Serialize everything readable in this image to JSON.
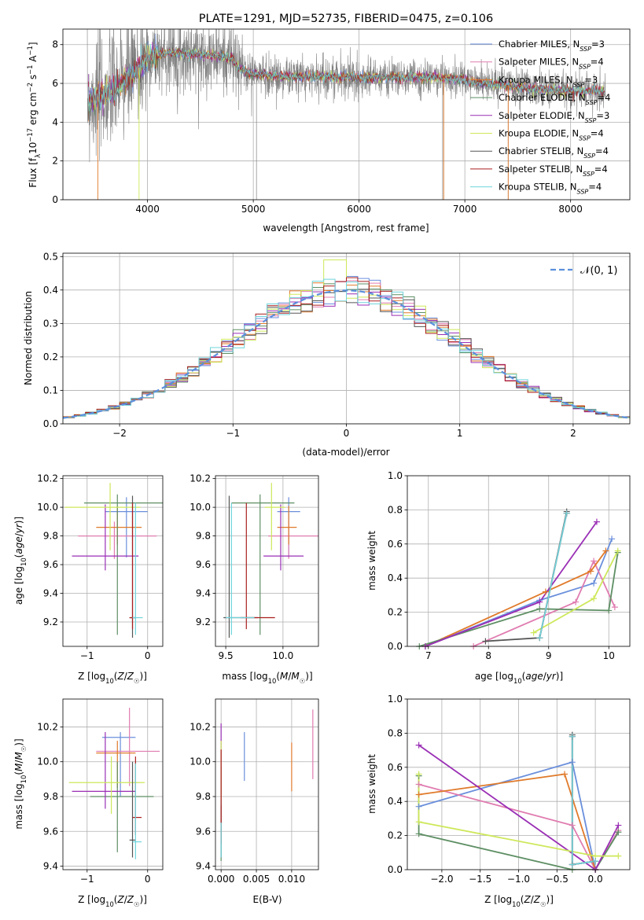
{
  "colors": {
    "chabrier_miles": "#6a8fdc",
    "salpeter_miles": "#e07cb0",
    "kroupa_miles": "#e07a2a",
    "chabrier_elodie": "#5e8f64",
    "salpeter_elodie": "#9a2fb5",
    "kroupa_elodie": "#cde85a",
    "chabrier_stelib": "#555555",
    "salpeter_stelib": "#aa1f1f",
    "kroupa_stelib": "#6fd4dc",
    "normal_curve": "#5b8fdc",
    "spectrum": "#808080"
  },
  "chart_data": [
    {
      "type": "line",
      "title": "PLATE=1291, MJD=52735, FIBERID=0475, z=0.106",
      "xlabel": "wavelength [Angstrom, rest frame]",
      "ylabel": "Flux [f_λ 10^-17 erg cm^-2 s^-1 A^-1]",
      "xlim": [
        3200,
        8560
      ],
      "ylim": [
        0,
        8.8
      ],
      "xticks": [
        4000,
        5000,
        6000,
        7000,
        8000
      ],
      "yticks": [
        0,
        2,
        4,
        6,
        8
      ],
      "legend_position": "top-right",
      "legend": [
        {
          "base": "Chabrier MILES, N",
          "sub": "SSP",
          "tail": "=3",
          "color_key": "chabrier_miles"
        },
        {
          "base": "Salpeter MILES, N",
          "sub": "SSP",
          "tail": "=4",
          "color_key": "salpeter_miles"
        },
        {
          "base": "Kroupa MILES, N",
          "sub": "SSP",
          "tail": "=3",
          "color_key": "kroupa_miles"
        },
        {
          "base": "Chabrier ELODIE, N",
          "sub": "SSP",
          "tail": "=4",
          "color_key": "chabrier_elodie"
        },
        {
          "base": "Salpeter ELODIE, N",
          "sub": "SSP",
          "tail": "=3",
          "color_key": "salpeter_elodie"
        },
        {
          "base": "Kroupa ELODIE, N",
          "sub": "SSP",
          "tail": "=4",
          "color_key": "kroupa_elodie"
        },
        {
          "base": "Chabrier STELIB, N",
          "sub": "SSP",
          "tail": "=4",
          "color_key": "chabrier_stelib"
        },
        {
          "base": "Salpeter STELIB, N",
          "sub": "SSP",
          "tail": "=4",
          "color_key": "salpeter_stelib"
        },
        {
          "base": "Kroupa STELIB, N",
          "sub": "SSP",
          "tail": "=4",
          "color_key": "kroupa_stelib"
        }
      ],
      "model_continuum": {
        "x": [
          3450,
          3600,
          3800,
          3900,
          4000,
          4200,
          4400,
          4600,
          4800,
          4850,
          5000,
          5300,
          5600,
          6000,
          6400,
          6800,
          7200,
          7600,
          8000,
          8300
        ],
        "y": [
          5.2,
          5.4,
          6.2,
          6.7,
          7.3,
          7.6,
          7.5,
          7.45,
          7.3,
          6.8,
          6.5,
          6.35,
          6.35,
          6.3,
          6.3,
          6.3,
          6.0,
          5.75,
          5.6,
          5.6
        ]
      }
    },
    {
      "type": "histogram",
      "xlabel": "(data-model)/error",
      "ylabel": "Normed distribution",
      "xlim": [
        -2.5,
        2.5
      ],
      "ylim": [
        0,
        0.51
      ],
      "xticks": [
        -2,
        -1,
        0,
        1,
        2
      ],
      "yticks": [
        0.0,
        0.1,
        0.2,
        0.3,
        0.4,
        0.5
      ],
      "bin_width": 0.1,
      "legend_label": "𝒩(0, 1)",
      "legend_position": "top-right",
      "reference_curve": "standard normal density"
    },
    {
      "type": "error_bars",
      "xlabel": "Z [log10(Z/Z☉)]",
      "ylabel": "age [log10(age/yr)]",
      "xlim": [
        -1.4,
        0.25
      ],
      "ylim": [
        9.03,
        10.22
      ],
      "xticks": [
        -1,
        0
      ],
      "yticks": [
        9.2,
        9.4,
        9.6,
        9.8,
        10.0,
        10.2
      ],
      "points": [
        {
          "color_key": "chabrier_miles",
          "x": -0.35,
          "xerr": [
            0.35,
            0.35
          ],
          "y": 9.97,
          "yerr": [
            0.32,
            0.1
          ]
        },
        {
          "color_key": "salpeter_miles",
          "x": -0.55,
          "xerr": [
            0.6,
            0.7
          ],
          "y": 9.8,
          "yerr": [
            0.16,
            0.1
          ]
        },
        {
          "color_key": "kroupa_miles",
          "x": -0.5,
          "xerr": [
            0.35,
            0.4
          ],
          "y": 9.86,
          "yerr": [
            0.12,
            0.15
          ]
        },
        {
          "color_key": "chabrier_elodie",
          "x": -0.5,
          "xerr": [
            0.55,
            0.75
          ],
          "y": 10.03,
          "yerr": [
            0.92,
            0.06
          ]
        },
        {
          "color_key": "salpeter_elodie",
          "x": -0.7,
          "xerr": [
            0.55,
            0.55
          ],
          "y": 9.66,
          "yerr": [
            0.1,
            0.36
          ]
        },
        {
          "color_key": "kroupa_elodie",
          "x": -0.62,
          "xerr": [
            0.75,
            0.5
          ],
          "y": 10.0,
          "yerr": [
            0.3,
            0.17
          ]
        },
        {
          "color_key": "chabrier_stelib",
          "x": -0.25,
          "xerr": [
            0.05,
            0.05
          ],
          "y": 9.23,
          "yerr": [
            0.14,
            0.85
          ]
        },
        {
          "color_key": "salpeter_stelib",
          "x": -0.25,
          "xerr": [
            0.05,
            0.05
          ],
          "y": 9.23,
          "yerr": [
            0.08,
            0.8
          ]
        },
        {
          "color_key": "kroupa_stelib",
          "x": -0.2,
          "xerr": [
            0.05,
            0.12
          ],
          "y": 9.23,
          "yerr": [
            0.12,
            0.8
          ]
        }
      ]
    },
    {
      "type": "error_bars",
      "xlabel": "mass [log10(M/M☉)]",
      "ylabel": "",
      "xlim": [
        9.41,
        10.31
      ],
      "ylim": [
        9.03,
        10.22
      ],
      "xticks": [
        9.5,
        10.0
      ],
      "yticks": [
        9.2,
        9.4,
        9.6,
        9.8,
        10.0,
        10.2
      ],
      "points": [
        {
          "color_key": "chabrier_miles",
          "x": 10.05,
          "xerr": [
            0.1,
            0.1
          ],
          "y": 9.97,
          "yerr": [
            0.32,
            0.1
          ]
        },
        {
          "color_key": "salpeter_miles",
          "x": 10.05,
          "xerr": [
            0.18,
            0.26
          ],
          "y": 9.8,
          "yerr": [
            0.16,
            0.1
          ]
        },
        {
          "color_key": "kroupa_miles",
          "x": 10.05,
          "xerr": [
            0.1,
            0.07
          ],
          "y": 9.86,
          "yerr": [
            0.12,
            0.15
          ]
        },
        {
          "color_key": "chabrier_elodie",
          "x": 9.8,
          "xerr": [
            0.25,
            0.3
          ],
          "y": 10.03,
          "yerr": [
            0.92,
            0.06
          ]
        },
        {
          "color_key": "salpeter_elodie",
          "x": 9.98,
          "xerr": [
            0.15,
            0.2
          ],
          "y": 9.66,
          "yerr": [
            0.1,
            0.36
          ]
        },
        {
          "color_key": "kroupa_elodie",
          "x": 9.9,
          "xerr": [
            0.06,
            0.12
          ],
          "y": 10.0,
          "yerr": [
            0.3,
            0.17
          ]
        },
        {
          "color_key": "chabrier_stelib",
          "x": 9.53,
          "xerr": [
            0.05,
            0.25
          ],
          "y": 9.23,
          "yerr": [
            0.14,
            0.85
          ]
        },
        {
          "color_key": "salpeter_stelib",
          "x": 9.68,
          "xerr": [
            0.05,
            0.25
          ],
          "y": 9.23,
          "yerr": [
            0.08,
            0.8
          ]
        },
        {
          "color_key": "kroupa_stelib",
          "x": 9.55,
          "xerr": [
            0.05,
            0.2
          ],
          "y": 9.23,
          "yerr": [
            0.12,
            0.8
          ]
        }
      ]
    },
    {
      "type": "line",
      "xlabel": "age [log10(age/yr)]",
      "ylabel": "mass weight",
      "xlim": [
        6.65,
        10.35
      ],
      "ylim": [
        0,
        1.0
      ],
      "xticks": [
        7,
        8,
        9,
        10
      ],
      "yticks": [
        0.0,
        0.2,
        0.4,
        0.6,
        0.8,
        1.0
      ],
      "series": [
        {
          "color_key": "chabrier_miles",
          "x": [
            6.95,
            8.85,
            9.75,
            10.05
          ],
          "y": [
            0.0,
            0.27,
            0.37,
            0.63
          ]
        },
        {
          "color_key": "salpeter_miles",
          "x": [
            7.75,
            9.45,
            9.75,
            10.1
          ],
          "y": [
            0.0,
            0.26,
            0.5,
            0.23
          ]
        },
        {
          "color_key": "kroupa_miles",
          "x": [
            6.95,
            8.95,
            9.7,
            9.95
          ],
          "y": [
            0.0,
            0.32,
            0.44,
            0.56
          ]
        },
        {
          "color_key": "chabrier_elodie",
          "x": [
            6.85,
            8.85,
            10.0,
            10.15
          ],
          "y": [
            0.0,
            0.22,
            0.21,
            0.55
          ]
        },
        {
          "color_key": "salpeter_elodie",
          "x": [
            6.95,
            8.85,
            9.8
          ],
          "y": [
            0.0,
            0.26,
            0.73
          ]
        },
        {
          "color_key": "kroupa_elodie",
          "x": [
            8.75,
            9.75,
            10.15
          ],
          "y": [
            0.08,
            0.28,
            0.56
          ]
        },
        {
          "color_key": "chabrier_stelib",
          "x": [
            7.95,
            8.85,
            9.3
          ],
          "y": [
            0.03,
            0.05,
            0.79
          ]
        },
        {
          "color_key": "salpeter_stelib",
          "x": [
            8.85,
            9.3
          ],
          "y": [
            0.05,
            0.78
          ]
        },
        {
          "color_key": "kroupa_stelib",
          "x": [
            8.85,
            9.3
          ],
          "y": [
            0.05,
            0.78
          ]
        }
      ]
    },
    {
      "type": "error_bars",
      "xlabel": "Z [log10(Z/Z☉)]",
      "ylabel": "mass [log10(M/M☉)]",
      "xlim": [
        -1.4,
        0.25
      ],
      "ylim": [
        9.38,
        10.36
      ],
      "xticks": [
        -1,
        0
      ],
      "yticks": [
        9.4,
        9.6,
        9.8,
        10.0,
        10.2
      ],
      "points": [
        {
          "color_key": "chabrier_miles",
          "x": -0.45,
          "xerr": [
            0.3,
            0.25
          ],
          "y": 10.14,
          "yerr": [
            0.34,
            0.03
          ]
        },
        {
          "color_key": "salpeter_miles",
          "x": -0.3,
          "xerr": [
            0.55,
            0.5
          ],
          "y": 10.06,
          "yerr": [
            0.2,
            0.25
          ]
        },
        {
          "color_key": "kroupa_miles",
          "x": -0.5,
          "xerr": [
            0.35,
            0.3
          ],
          "y": 10.05,
          "yerr": [
            0.2,
            0.07
          ]
        },
        {
          "color_key": "chabrier_elodie",
          "x": -0.5,
          "xerr": [
            0.45,
            0.6
          ],
          "y": 9.8,
          "yerr": [
            0.32,
            0.2
          ]
        },
        {
          "color_key": "salpeter_elodie",
          "x": -0.7,
          "xerr": [
            0.55,
            0.5
          ],
          "y": 9.83,
          "yerr": [
            0.1,
            0.34
          ]
        },
        {
          "color_key": "kroupa_elodie",
          "x": -0.6,
          "xerr": [
            0.7,
            0.55
          ],
          "y": 9.88,
          "yerr": [
            0.18,
            0.15
          ]
        },
        {
          "color_key": "chabrier_stelib",
          "x": -0.25,
          "xerr": [
            0.05,
            0.05
          ],
          "y": 9.55,
          "yerr": [
            0.1,
            0.45
          ]
        },
        {
          "color_key": "salpeter_stelib",
          "x": -0.2,
          "xerr": [
            0.05,
            0.1
          ],
          "y": 9.68,
          "yerr": [
            0.1,
            0.35
          ]
        },
        {
          "color_key": "kroupa_stelib",
          "x": -0.2,
          "xerr": [
            0.05,
            0.1
          ],
          "y": 9.54,
          "yerr": [
            0.1,
            0.45
          ]
        }
      ]
    },
    {
      "type": "error_bars",
      "xlabel": "E(B-V)",
      "ylabel": "",
      "xlim": [
        -0.0008,
        0.0138
      ],
      "ylim": [
        9.38,
        10.36
      ],
      "xticks": [
        0.0,
        0.005,
        0.01
      ],
      "tick_labels": [
        "0.000",
        "0.005",
        "0.010"
      ],
      "yticks": [
        9.4,
        9.6,
        9.8,
        10.0,
        10.2
      ],
      "points": [
        {
          "color_key": "chabrier_miles",
          "x": 0.0033,
          "y": 10.03,
          "yerr": [
            0.14,
            0.14
          ]
        },
        {
          "color_key": "salpeter_miles",
          "x": 0.013,
          "y": 10.1,
          "yerr": [
            0.2,
            0.2
          ]
        },
        {
          "color_key": "kroupa_miles",
          "x": 0.01,
          "y": 9.97,
          "yerr": [
            0.14,
            0.14
          ]
        },
        {
          "color_key": "chabrier_elodie",
          "x": 0.0,
          "y": 9.7,
          "yerr": [
            0.27,
            0.27
          ]
        },
        {
          "color_key": "salpeter_elodie",
          "x": 0.0,
          "y": 10.0,
          "yerr": [
            0.22,
            0.22
          ]
        },
        {
          "color_key": "kroupa_elodie",
          "x": 0.0,
          "y": 9.95,
          "yerr": [
            0.17,
            0.17
          ]
        },
        {
          "color_key": "chabrier_stelib",
          "x": 0.0,
          "y": 9.6,
          "yerr": [
            0.15,
            0.15
          ]
        },
        {
          "color_key": "salpeter_stelib",
          "x": 0.0,
          "y": 9.8,
          "yerr": [
            0.27,
            0.27
          ]
        },
        {
          "color_key": "kroupa_stelib",
          "x": 0.0,
          "y": 9.55,
          "yerr": [
            0.1,
            0.1
          ]
        }
      ]
    },
    {
      "type": "line",
      "xlabel": "Z [log10(Z/Z☉)]",
      "ylabel": "mass weight",
      "xlim": [
        -2.45,
        0.45
      ],
      "ylim": [
        0,
        1.0
      ],
      "xticks": [
        -2.0,
        -1.5,
        -1.0,
        -0.5,
        0.0
      ],
      "tick_labels": [
        "−2.0",
        "−1.5",
        "−1.0",
        "−0.5",
        "0.0"
      ],
      "yticks": [
        0.0,
        0.2,
        0.4,
        0.6,
        0.8,
        1.0
      ],
      "series": [
        {
          "color_key": "chabrier_miles",
          "x": [
            -2.3,
            -0.3,
            0.0
          ],
          "y": [
            0.37,
            0.63,
            0.0
          ]
        },
        {
          "color_key": "salpeter_miles",
          "x": [
            -2.3,
            -0.3,
            0.0,
            0.3
          ],
          "y": [
            0.5,
            0.26,
            0.0,
            0.23
          ]
        },
        {
          "color_key": "kroupa_miles",
          "x": [
            -2.3,
            -0.4,
            0.0
          ],
          "y": [
            0.44,
            0.56,
            0.0
          ]
        },
        {
          "color_key": "chabrier_elodie",
          "x": [
            -2.3,
            -2.3,
            -0.3,
            0.0,
            0.3
          ],
          "y": [
            0.55,
            0.21,
            0.0,
            0.0,
            0.22
          ]
        },
        {
          "color_key": "salpeter_elodie",
          "x": [
            -2.3,
            0.0,
            0.3
          ],
          "y": [
            0.73,
            0.0,
            0.26
          ]
        },
        {
          "color_key": "kroupa_elodie",
          "x": [
            -2.3,
            -2.3,
            0.0,
            0.3
          ],
          "y": [
            0.56,
            0.28,
            0.08,
            0.08
          ]
        },
        {
          "color_key": "chabrier_stelib",
          "x": [
            -0.3,
            -0.3,
            0.0
          ],
          "y": [
            0.79,
            0.03,
            0.05
          ]
        },
        {
          "color_key": "salpeter_stelib",
          "x": [
            -0.3,
            -0.3,
            0.0
          ],
          "y": [
            0.78,
            0.03,
            0.05
          ]
        },
        {
          "color_key": "kroupa_stelib",
          "x": [
            -0.3,
            -0.3,
            0.0
          ],
          "y": [
            0.78,
            0.03,
            0.05
          ]
        }
      ]
    }
  ]
}
